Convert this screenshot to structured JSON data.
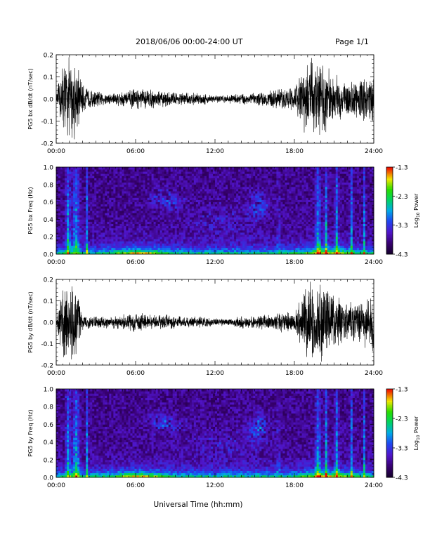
{
  "header": {
    "title": "2018/06/06  00:00-24:00 UT",
    "page_label": "Page 1/1"
  },
  "xlabel": "Universal Time (hh:mm)",
  "x_tick_labels": [
    "00:00",
    "06:00",
    "12:00",
    "18:00",
    "24:00"
  ],
  "chart_data": [
    {
      "type": "line",
      "ylabel": "PG5 bx dB/dt (nT/sec)",
      "xlim": [
        0,
        24
      ],
      "ylim": [
        -0.2,
        0.2
      ],
      "y_ticks": [
        "0.2",
        "0.1",
        "0.0",
        "-0.1",
        "-0.2"
      ],
      "envelope": {
        "hours": [
          0,
          0.5,
          1,
          1.5,
          2,
          2.5,
          3,
          4,
          5,
          6,
          7,
          8,
          9,
          10,
          11,
          12,
          13,
          14,
          15,
          16,
          17,
          18,
          19,
          19.5,
          20,
          21,
          22,
          23,
          24
        ],
        "amplitude": [
          0.01,
          0.2,
          0.2,
          0.2,
          0.07,
          0.05,
          0.04,
          0.03,
          0.04,
          0.05,
          0.05,
          0.04,
          0.035,
          0.03,
          0.03,
          0.02,
          0.02,
          0.03,
          0.03,
          0.04,
          0.05,
          0.06,
          0.2,
          0.2,
          0.2,
          0.12,
          0.09,
          0.1,
          0.12
        ]
      }
    },
    {
      "type": "heatmap",
      "ylabel": "PG5 bx Freq (Hz)",
      "xlim": [
        0,
        24
      ],
      "ylim": [
        0,
        1.0
      ],
      "y_ticks": [
        "1.0",
        "0.8",
        "0.6",
        "0.4",
        "0.2",
        "0.0"
      ],
      "colorbar": {
        "label": "Log10 Power",
        "range": [
          -4.3,
          -1.3
        ],
        "ticks": [
          "-1.3",
          "-2.3",
          "-3.3",
          "-4.3"
        ]
      }
    },
    {
      "type": "line",
      "ylabel": "PG5 by dB/dt (nT/sec)",
      "xlim": [
        0,
        24
      ],
      "ylim": [
        -0.2,
        0.2
      ],
      "y_ticks": [
        "0.2",
        "0.1",
        "0.0",
        "-0.1",
        "-0.2"
      ],
      "envelope": {
        "hours": [
          0,
          0.5,
          1,
          1.5,
          2,
          2.5,
          3,
          4,
          5,
          6,
          7,
          8,
          9,
          10,
          11,
          12,
          13,
          14,
          15,
          16,
          17,
          18,
          19,
          19.5,
          20,
          21,
          22,
          23,
          24
        ],
        "amplitude": [
          0.01,
          0.2,
          0.2,
          0.2,
          0.05,
          0.03,
          0.03,
          0.03,
          0.04,
          0.05,
          0.04,
          0.04,
          0.035,
          0.03,
          0.03,
          0.02,
          0.02,
          0.03,
          0.03,
          0.04,
          0.05,
          0.06,
          0.2,
          0.2,
          0.2,
          0.15,
          0.1,
          0.12,
          0.15
        ]
      }
    },
    {
      "type": "heatmap",
      "ylabel": "PG5 by Freq (Hz)",
      "xlim": [
        0,
        24
      ],
      "ylim": [
        0,
        1.0
      ],
      "y_ticks": [
        "1.0",
        "0.8",
        "0.6",
        "0.4",
        "0.2",
        "0.0"
      ],
      "colorbar": {
        "label": "Log10 Power",
        "range": [
          -4.3,
          -1.3
        ],
        "ticks": [
          "-1.3",
          "-2.3",
          "-3.3",
          "-4.3"
        ]
      }
    }
  ],
  "colors": {
    "trace": "#000000",
    "background": "#ffffff",
    "heatmap_background": "#14002a"
  }
}
